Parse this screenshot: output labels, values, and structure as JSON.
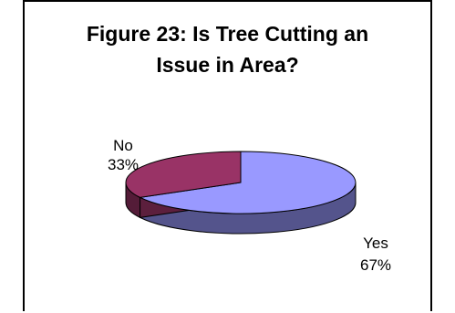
{
  "chart_data": {
    "type": "pie",
    "title_lines": [
      "Figure 23: Is Tree Cutting an",
      "Issue in Area?"
    ],
    "categories": [
      "Yes",
      "No"
    ],
    "values": [
      67,
      33
    ],
    "value_labels": [
      "67%",
      "33%"
    ],
    "colors": {
      "Yes": "#9999ff",
      "No": "#993366"
    },
    "three_d": true,
    "legend": "none"
  }
}
